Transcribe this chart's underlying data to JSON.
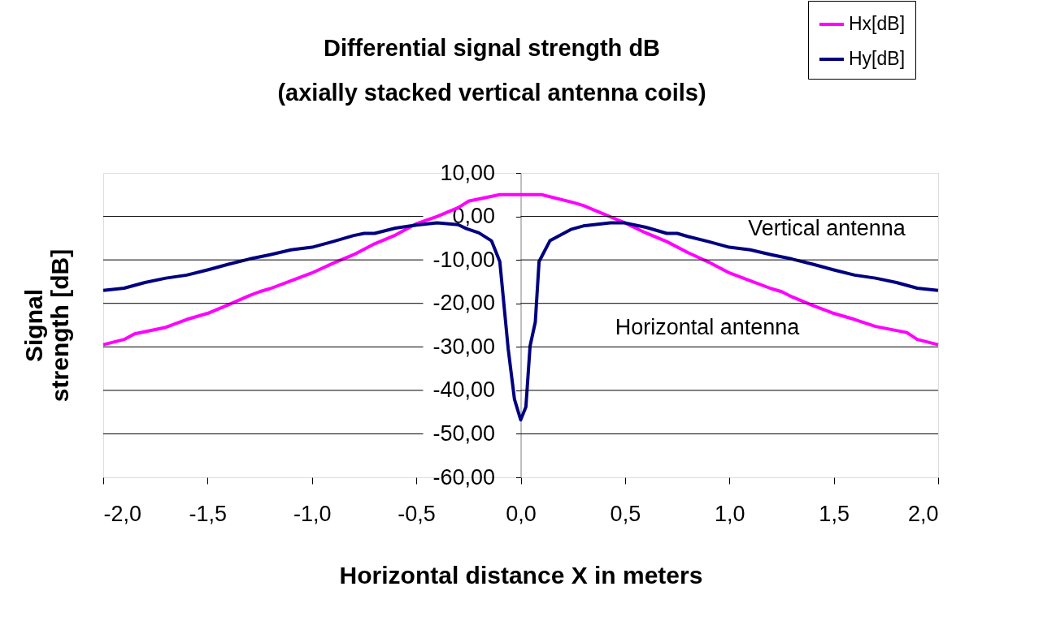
{
  "chart_data": {
    "type": "line",
    "title": "Differential signal strength dB",
    "subtitle": "(axially stacked vertical antenna coils)",
    "xlabel": "Horizontal distance X in meters",
    "ylabel": "Signal strength [dB]",
    "series": [
      {
        "name": "Hx[dB]",
        "color": "#ff00ff",
        "x": [
          -2,
          -1.9,
          -1.85,
          -1.7,
          -1.6,
          -1.5,
          -1.4,
          -1.3,
          -1.25,
          -1.2,
          -1.1,
          -1.0,
          -0.9,
          -0.8,
          -0.7,
          -0.6,
          -0.5,
          -0.4,
          -0.3,
          -0.25,
          -0.1,
          0,
          0.1,
          0.25,
          0.3,
          0.4,
          0.5,
          0.6,
          0.7,
          0.8,
          0.9,
          1.0,
          1.1,
          1.2,
          1.25,
          1.3,
          1.4,
          1.5,
          1.6,
          1.7,
          1.85,
          1.9,
          2.0
        ],
        "values": [
          -29.5,
          -28.3,
          -27,
          -25.5,
          -23.7,
          -22.3,
          -20.3,
          -18.2,
          -17.3,
          -16.6,
          -14.8,
          -13,
          -10.8,
          -8.8,
          -6.3,
          -4.3,
          -1.7,
          0,
          2,
          3.5,
          5,
          5,
          5,
          3.2,
          2.5,
          0.5,
          -1.5,
          -3.8,
          -5.8,
          -8.3,
          -10.5,
          -13,
          -14.8,
          -16.6,
          -17.3,
          -18.5,
          -20.5,
          -22.3,
          -23.7,
          -25.3,
          -26.7,
          -28.3,
          -29.5
        ]
      },
      {
        "name": "Hy[dB]",
        "color": "#000080",
        "x": [
          -2,
          -1.9,
          -1.8,
          -1.7,
          -1.6,
          -1.5,
          -1.4,
          -1.3,
          -1.2,
          -1.1,
          -1.0,
          -0.9,
          -0.8,
          -0.75,
          -0.7,
          -0.6,
          -0.5,
          -0.4,
          -0.3,
          -0.26,
          -0.2,
          -0.14,
          -0.1,
          -0.06,
          -0.03,
          0,
          0.025,
          0.045,
          0.07,
          0.088,
          0.14,
          0.24,
          0.3,
          0.43,
          0.5,
          0.6,
          0.7,
          0.75,
          0.8,
          0.9,
          1.0,
          1.1,
          1.2,
          1.3,
          1.4,
          1.5,
          1.6,
          1.7,
          1.8,
          1.9,
          2.0
        ],
        "values": [
          -17,
          -16.5,
          -15.2,
          -14.2,
          -13.5,
          -12.3,
          -11,
          -9.8,
          -8.8,
          -7.7,
          -7.1,
          -5.8,
          -4.4,
          -3.9,
          -3.9,
          -2.7,
          -2,
          -1.5,
          -1.9,
          -2.8,
          -3.8,
          -5.6,
          -10.4,
          -30.4,
          -42,
          -46.8,
          -43.8,
          -29.8,
          -24.3,
          -10.4,
          -5.6,
          -3,
          -2.2,
          -1.5,
          -1.5,
          -2.5,
          -3.9,
          -3.9,
          -4.6,
          -5.8,
          -7.1,
          -7.7,
          -8.8,
          -9.8,
          -11,
          -12.3,
          -13.5,
          -14.2,
          -15.2,
          -16.5,
          -17
        ]
      }
    ],
    "xlim": [
      -2,
      2
    ],
    "xticks": [
      {
        "value": -2,
        "label": "-2,0"
      },
      {
        "value": -1.5,
        "label": "-1,5"
      },
      {
        "value": -1,
        "label": "-1,0"
      },
      {
        "value": -0.5,
        "label": "-0,5"
      },
      {
        "value": 0,
        "label": "0,0"
      },
      {
        "value": 0.5,
        "label": "0,5"
      },
      {
        "value": 1,
        "label": "1,0"
      },
      {
        "value": 1.5,
        "label": "1,5"
      },
      {
        "value": 2,
        "label": "2,0"
      }
    ],
    "ylim": [
      -60,
      10
    ],
    "yticks": [
      {
        "value": -60,
        "label": "-60,00"
      },
      {
        "value": -50,
        "label": "-50,00"
      },
      {
        "value": -40,
        "label": "-40,00"
      },
      {
        "value": -30,
        "label": "-30,00"
      },
      {
        "value": -20,
        "label": "-20,00"
      },
      {
        "value": -10,
        "label": "-10,00"
      },
      {
        "value": 0,
        "label": "0,00"
      },
      {
        "value": 10,
        "label": "10,00"
      }
    ],
    "annotations": [
      "Vertical antenna",
      "Horizontal antenna"
    ],
    "grid": "y",
    "legend": "top right",
    "marker": "none",
    "line_style": "solid"
  }
}
